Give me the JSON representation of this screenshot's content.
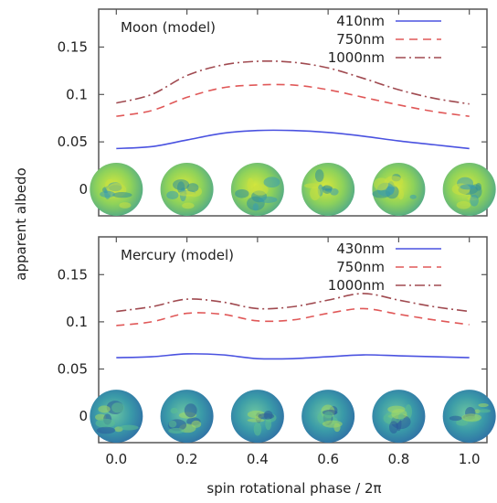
{
  "figure": {
    "ylabel": "apparent albedo",
    "xlabel": "spin rotational phase / 2π",
    "x_ticks": [
      "0.0",
      "0.2",
      "0.4",
      "0.6",
      "0.8",
      "1.0"
    ]
  },
  "colors": {
    "blue": "#4a52e0",
    "red": "#e05858",
    "darkred": "#a04a50",
    "frame": "#555555"
  },
  "chart_data": [
    {
      "type": "line",
      "title": "Moon (model)",
      "xlim": [
        -0.05,
        1.05
      ],
      "ylim": [
        -0.028,
        0.19
      ],
      "y_ticks": [
        "0.15",
        "0.1",
        "0.05",
        "0"
      ],
      "y_tick_values": [
        0.15,
        0.1,
        0.05,
        0
      ],
      "x": [
        0.0,
        0.1,
        0.2,
        0.3,
        0.4,
        0.5,
        0.6,
        0.7,
        0.8,
        0.9,
        1.0
      ],
      "series": [
        {
          "name": "410nm",
          "style": "solid",
          "color": "#4a52e0",
          "values": [
            0.043,
            0.045,
            0.052,
            0.059,
            0.062,
            0.062,
            0.06,
            0.056,
            0.051,
            0.047,
            0.043
          ]
        },
        {
          "name": "750nm",
          "style": "dashed",
          "color": "#e05858",
          "values": [
            0.077,
            0.083,
            0.097,
            0.107,
            0.11,
            0.11,
            0.105,
            0.097,
            0.089,
            0.082,
            0.077
          ]
        },
        {
          "name": "1000nm",
          "style": "dashdot",
          "color": "#a04a50",
          "values": [
            0.091,
            0.1,
            0.12,
            0.131,
            0.135,
            0.134,
            0.128,
            0.117,
            0.105,
            0.096,
            0.09
          ]
        }
      ],
      "disks": {
        "phases": [
          0.0,
          0.2,
          0.4,
          0.6,
          0.8,
          1.0
        ],
        "y": 0.0,
        "palette": "yellow-green"
      }
    },
    {
      "type": "line",
      "title": "Mercury (model)",
      "xlim": [
        -0.05,
        1.05
      ],
      "ylim": [
        -0.028,
        0.19
      ],
      "y_ticks": [
        "0.15",
        "0.1",
        "0.05",
        "0"
      ],
      "y_tick_values": [
        0.15,
        0.1,
        0.05,
        0
      ],
      "x": [
        0.0,
        0.1,
        0.2,
        0.3,
        0.4,
        0.5,
        0.6,
        0.7,
        0.8,
        0.9,
        1.0
      ],
      "series": [
        {
          "name": "430nm",
          "style": "solid",
          "color": "#4a52e0",
          "values": [
            0.062,
            0.063,
            0.066,
            0.065,
            0.061,
            0.061,
            0.063,
            0.065,
            0.064,
            0.063,
            0.062
          ]
        },
        {
          "name": "750nm",
          "style": "dashed",
          "color": "#e05858",
          "values": [
            0.096,
            0.1,
            0.109,
            0.108,
            0.101,
            0.102,
            0.109,
            0.114,
            0.108,
            0.102,
            0.097
          ]
        },
        {
          "name": "1000nm",
          "style": "dashdot",
          "color": "#a04a50",
          "values": [
            0.111,
            0.116,
            0.124,
            0.121,
            0.114,
            0.116,
            0.123,
            0.13,
            0.123,
            0.116,
            0.111
          ]
        }
      ],
      "disks": {
        "phases": [
          0.0,
          0.2,
          0.4,
          0.6,
          0.8,
          1.0
        ],
        "y": 0.0,
        "palette": "blue-green"
      }
    }
  ]
}
